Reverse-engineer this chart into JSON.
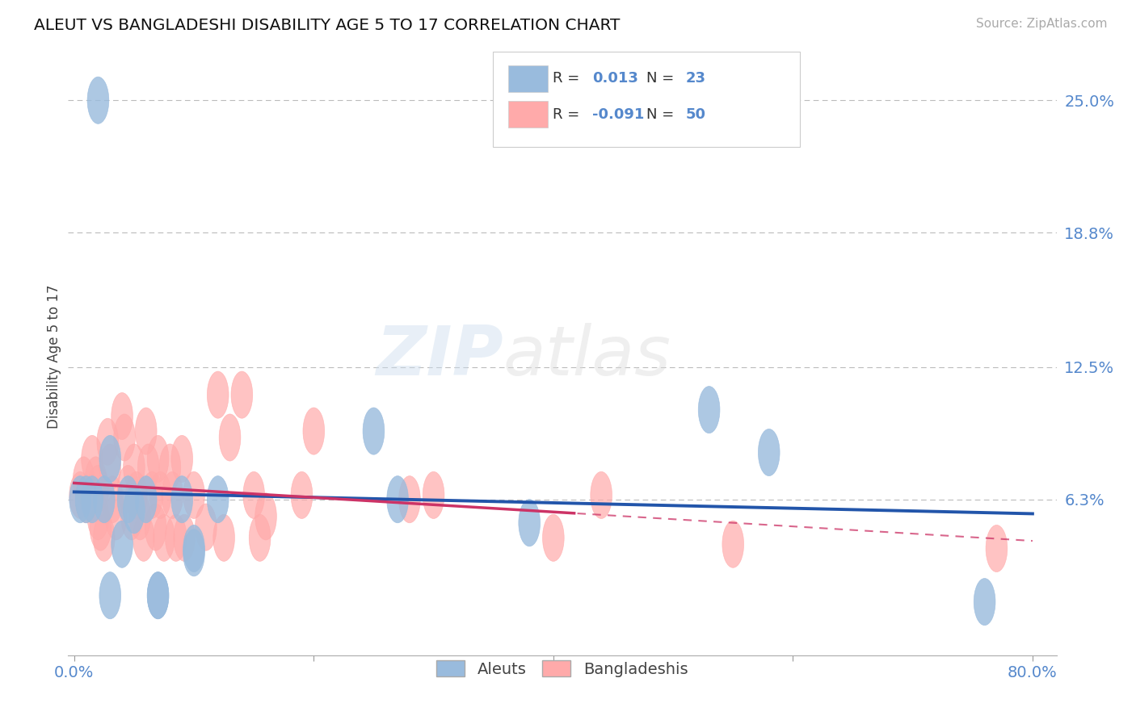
{
  "title": "ALEUT VS BANGLADESHI DISABILITY AGE 5 TO 17 CORRELATION CHART",
  "source": "Source: ZipAtlas.com",
  "ylabel": "Disability Age 5 to 17",
  "xlim": [
    -0.005,
    0.82
  ],
  "ylim": [
    -0.01,
    0.27
  ],
  "yticks": [
    0.063,
    0.125,
    0.188,
    0.25
  ],
  "ytick_labels": [
    "6.3%",
    "12.5%",
    "18.8%",
    "25.0%"
  ],
  "xticks": [
    0.0,
    0.2,
    0.4,
    0.6,
    0.8
  ],
  "xtick_labels": [
    "0.0%",
    "",
    "",
    "",
    "80.0%"
  ],
  "aleut_color": "#99BBDD",
  "bangladeshi_color": "#FFAAAA",
  "trend_aleut_color": "#2255AA",
  "trend_bangladeshi_color": "#CC3366",
  "background_color": "#FFFFFF",
  "aleut_x": [
    0.005,
    0.01,
    0.015,
    0.02,
    0.025,
    0.03,
    0.03,
    0.04,
    0.045,
    0.05,
    0.06,
    0.07,
    0.07,
    0.09,
    0.1,
    0.1,
    0.12,
    0.25,
    0.27,
    0.38,
    0.53,
    0.58,
    0.76
  ],
  "aleut_y": [
    0.063,
    0.063,
    0.063,
    0.25,
    0.063,
    0.082,
    0.018,
    0.042,
    0.063,
    0.058,
    0.063,
    0.018,
    0.018,
    0.063,
    0.04,
    0.038,
    0.063,
    0.095,
    0.063,
    0.052,
    0.105,
    0.085,
    0.015
  ],
  "bangladeshi_x": [
    0.005,
    0.008,
    0.01,
    0.015,
    0.018,
    0.02,
    0.02,
    0.022,
    0.025,
    0.028,
    0.03,
    0.032,
    0.035,
    0.04,
    0.042,
    0.045,
    0.048,
    0.05,
    0.052,
    0.055,
    0.058,
    0.06,
    0.062,
    0.065,
    0.068,
    0.07,
    0.072,
    0.075,
    0.08,
    0.082,
    0.085,
    0.09,
    0.092,
    0.1,
    0.11,
    0.12,
    0.125,
    0.13,
    0.14,
    0.15,
    0.155,
    0.16,
    0.19,
    0.2,
    0.28,
    0.3,
    0.4,
    0.44,
    0.55,
    0.77
  ],
  "bangladeshi_y": [
    0.065,
    0.072,
    0.063,
    0.082,
    0.072,
    0.068,
    0.055,
    0.05,
    0.045,
    0.09,
    0.078,
    0.063,
    0.055,
    0.102,
    0.092,
    0.068,
    0.055,
    0.078,
    0.065,
    0.055,
    0.045,
    0.095,
    0.078,
    0.065,
    0.05,
    0.082,
    0.065,
    0.045,
    0.078,
    0.065,
    0.045,
    0.082,
    0.045,
    0.065,
    0.05,
    0.112,
    0.045,
    0.092,
    0.112,
    0.065,
    0.045,
    0.055,
    0.065,
    0.095,
    0.063,
    0.065,
    0.045,
    0.065,
    0.042,
    0.04
  ],
  "trend_solid_end": 0.42,
  "aleut_R_text": "0.013",
  "aleut_N_text": "23",
  "bangladeshi_R_text": "-0.091",
  "bangladeshi_N_text": "50"
}
